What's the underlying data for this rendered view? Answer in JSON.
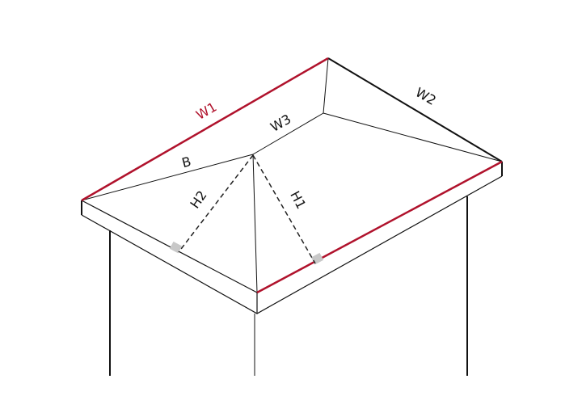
{
  "labels": {
    "w1": "W1",
    "w2": "W2",
    "w3": "W3",
    "b": "B",
    "h1": "H1",
    "h2": "H2"
  },
  "colors": {
    "highlight": "#b0122c",
    "line": "#111111",
    "right_angle_marker": "#c8c8c8"
  }
}
